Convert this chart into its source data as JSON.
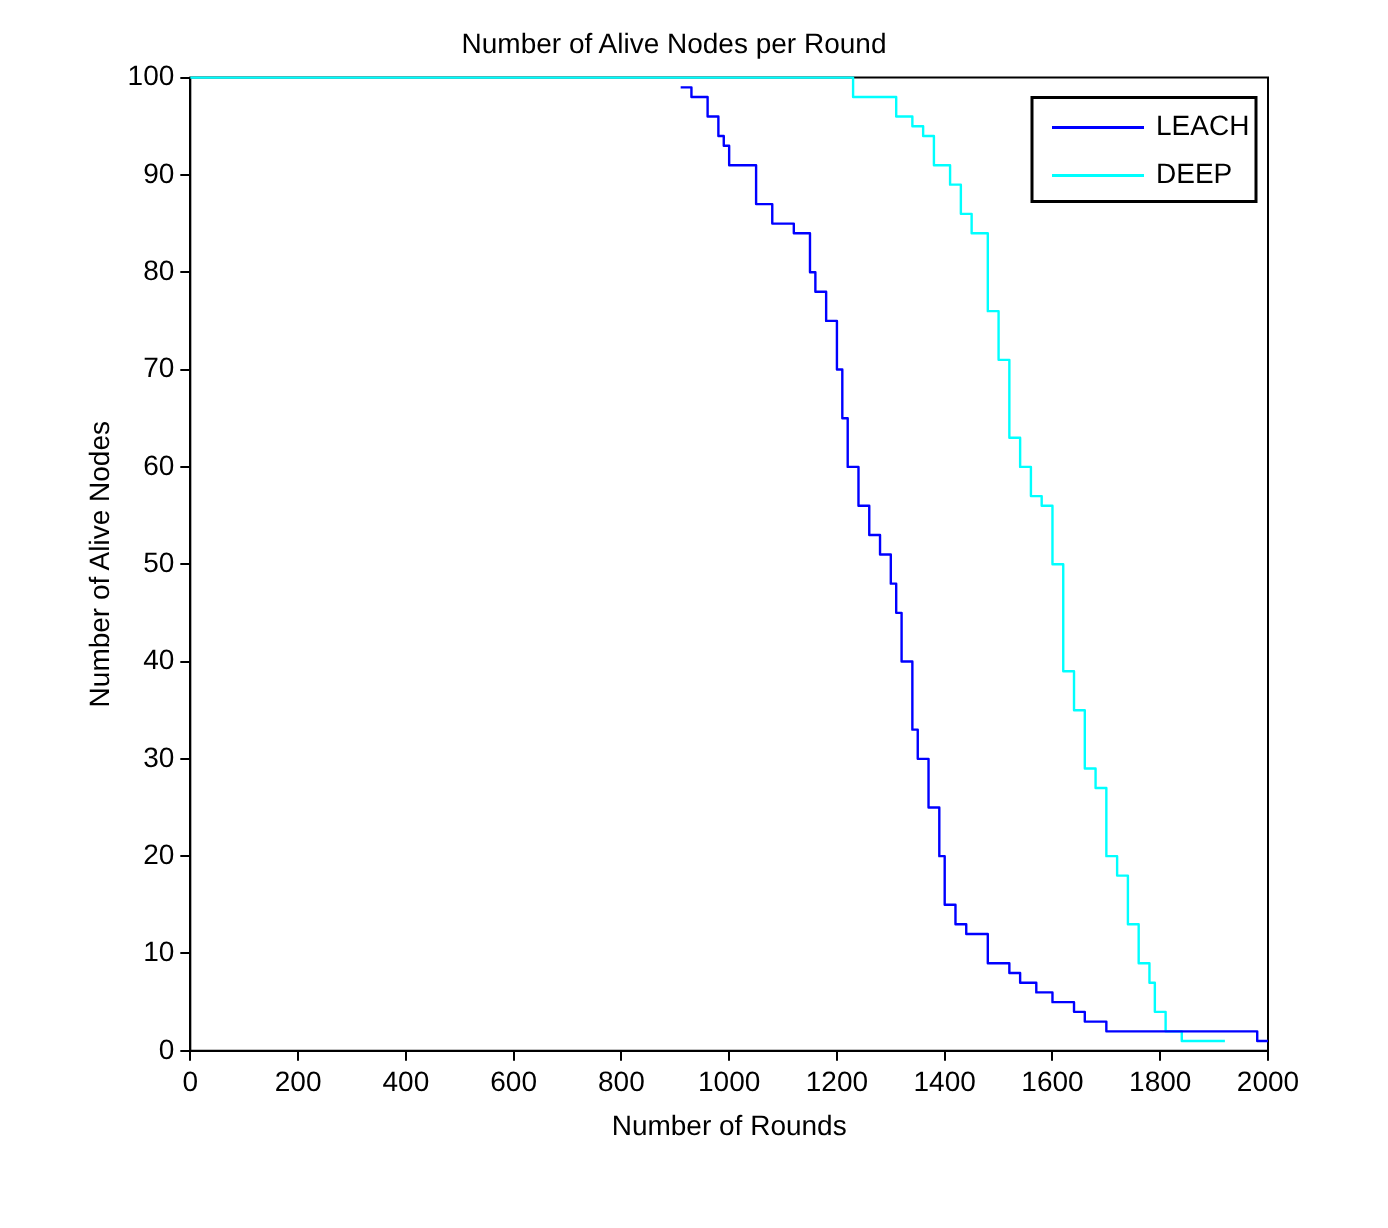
{
  "chart_data": {
    "type": "step",
    "title": "Number of Alive Nodes per Round",
    "xlabel": "Number of Rounds",
    "ylabel": "Number of Alive Nodes",
    "xlim": [
      0,
      2000
    ],
    "xticks": [
      0,
      200,
      400,
      600,
      800,
      1000,
      1200,
      1400,
      1600,
      1800,
      2000
    ],
    "ylim": [
      0,
      100
    ],
    "yticks": [
      0,
      10,
      20,
      30,
      40,
      50,
      60,
      70,
      80,
      90,
      100
    ],
    "grid": false,
    "legend": "top right",
    "marker": "none",
    "line_style": "solid",
    "series": [
      {
        "name": "LEACH",
        "color": "#0000ff",
        "x": [
          910,
          930,
          960,
          980,
          990,
          1000,
          1050,
          1080,
          1120,
          1150,
          1160,
          1180,
          1200,
          1210,
          1220,
          1240,
          1260,
          1280,
          1300,
          1310,
          1320,
          1340,
          1350,
          1370,
          1390,
          1400,
          1420,
          1440,
          1480,
          1520,
          1540,
          1570,
          1600,
          1640,
          1660,
          1700,
          1980,
          2000
        ],
        "values": [
          99,
          98,
          96,
          94,
          93,
          91,
          87,
          85,
          84,
          80,
          78,
          75,
          70,
          65,
          60,
          56,
          53,
          51,
          48,
          45,
          40,
          33,
          30,
          25,
          20,
          15,
          13,
          12,
          9,
          8,
          7,
          6,
          5,
          4,
          3,
          2,
          1,
          1
        ]
      },
      {
        "name": "DEEP",
        "color": "#00ffff",
        "x": [
          0,
          1230,
          1310,
          1340,
          1360,
          1380,
          1410,
          1430,
          1450,
          1480,
          1500,
          1520,
          1540,
          1560,
          1580,
          1600,
          1620,
          1640,
          1660,
          1680,
          1700,
          1720,
          1740,
          1760,
          1780,
          1790,
          1810,
          1840,
          1920
        ],
        "values": [
          100,
          98,
          96,
          95,
          94,
          91,
          89,
          86,
          84,
          76,
          71,
          63,
          60,
          57,
          56,
          50,
          39,
          35,
          29,
          27,
          20,
          18,
          13,
          9,
          7,
          4,
          2,
          1,
          1
        ]
      }
    ]
  }
}
